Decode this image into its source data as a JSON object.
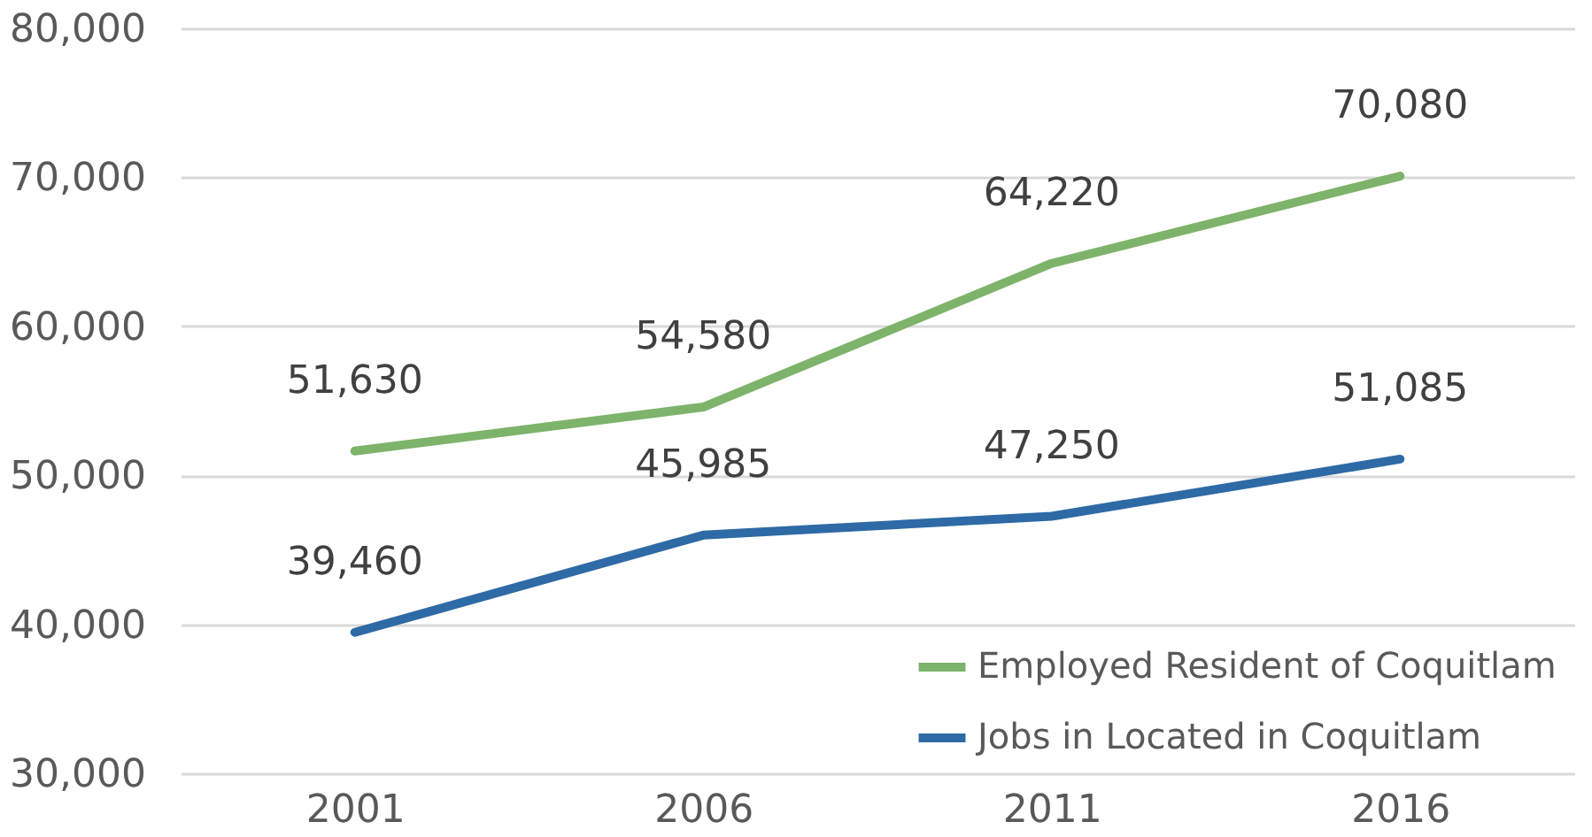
{
  "chart_data": {
    "type": "line",
    "categories": [
      "2001",
      "2006",
      "2011",
      "2016"
    ],
    "series": [
      {
        "name": "Employed Resident of Coquitlam",
        "color": "#7db36a",
        "values": [
          51630,
          54580,
          64220,
          70080
        ],
        "value_labels": [
          "51,630",
          "54,580",
          "64,220",
          "70,080"
        ]
      },
      {
        "name": "Jobs in Located in Coquitlam",
        "color": "#2e6aa6",
        "values": [
          39460,
          45985,
          47250,
          51085
        ],
        "value_labels": [
          "39,460",
          "45,985",
          "47,250",
          "51,085"
        ]
      }
    ],
    "ylim": [
      30000,
      80000
    ],
    "yticks": [
      {
        "value": 30000,
        "label": "30,000"
      },
      {
        "value": 40000,
        "label": "40,000"
      },
      {
        "value": 50000,
        "label": "50,000"
      },
      {
        "value": 60000,
        "label": "60,000"
      },
      {
        "value": 70000,
        "label": "70,000"
      },
      {
        "value": 80000,
        "label": "80,000"
      }
    ],
    "grid": "y",
    "legend": "bottom right",
    "marker": "none",
    "line_style": "solid"
  }
}
